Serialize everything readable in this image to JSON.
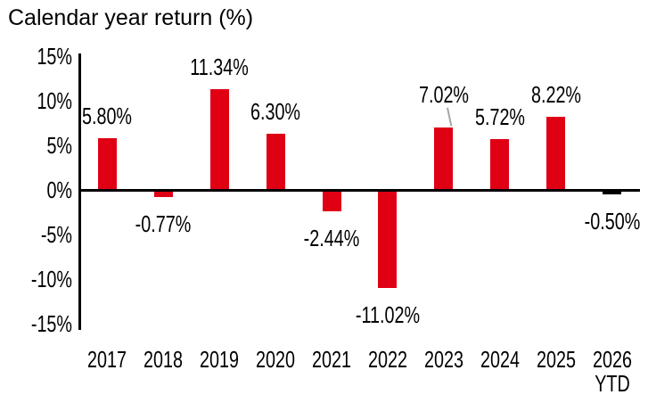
{
  "title": "Calendar year return (%)",
  "colors": {
    "bar": "#e00014",
    "bar_final": "#000000",
    "axis": "#000000",
    "text": "#000000",
    "leader_line": "#a6a6a6",
    "background": "#ffffff"
  },
  "chart_data": {
    "type": "bar",
    "title": "Calendar year return (%)",
    "categories": [
      "2017",
      "2018",
      "2019",
      "2020",
      "2021",
      "2022",
      "2023",
      "2024",
      "2025",
      "2026"
    ],
    "category_sublabels": [
      "",
      "",
      "",
      "",
      "",
      "",
      "",
      "",
      "",
      "YTD"
    ],
    "values": [
      5.8,
      -0.77,
      11.34,
      6.3,
      -2.44,
      -11.02,
      7.02,
      5.72,
      8.22,
      -0.5
    ],
    "value_labels": [
      "5.80%",
      "-0.77%",
      "11.34%",
      "6.30%",
      "-2.44%",
      "-11.02%",
      "7.02%",
      "5.72%",
      "8.22%",
      "-0.50%"
    ],
    "bar_colors": [
      "#e00014",
      "#e00014",
      "#e00014",
      "#e00014",
      "#e00014",
      "#e00014",
      "#e00014",
      "#e00014",
      "#e00014",
      "#000000"
    ],
    "xlabel": "",
    "ylabel": "",
    "ylim": [
      -15,
      15
    ],
    "yticks": [
      15,
      10,
      5,
      0,
      -5,
      -10,
      -15
    ],
    "ytick_labels": [
      "15%",
      "10%",
      "5%",
      "0%",
      "-5%",
      "-10%",
      "-15%"
    ],
    "grid": false,
    "legend": null,
    "annotations": [
      {
        "type": "leader-line",
        "target_index": 6,
        "note": "7.02% label raised above bar with short gray callout line"
      }
    ]
  }
}
